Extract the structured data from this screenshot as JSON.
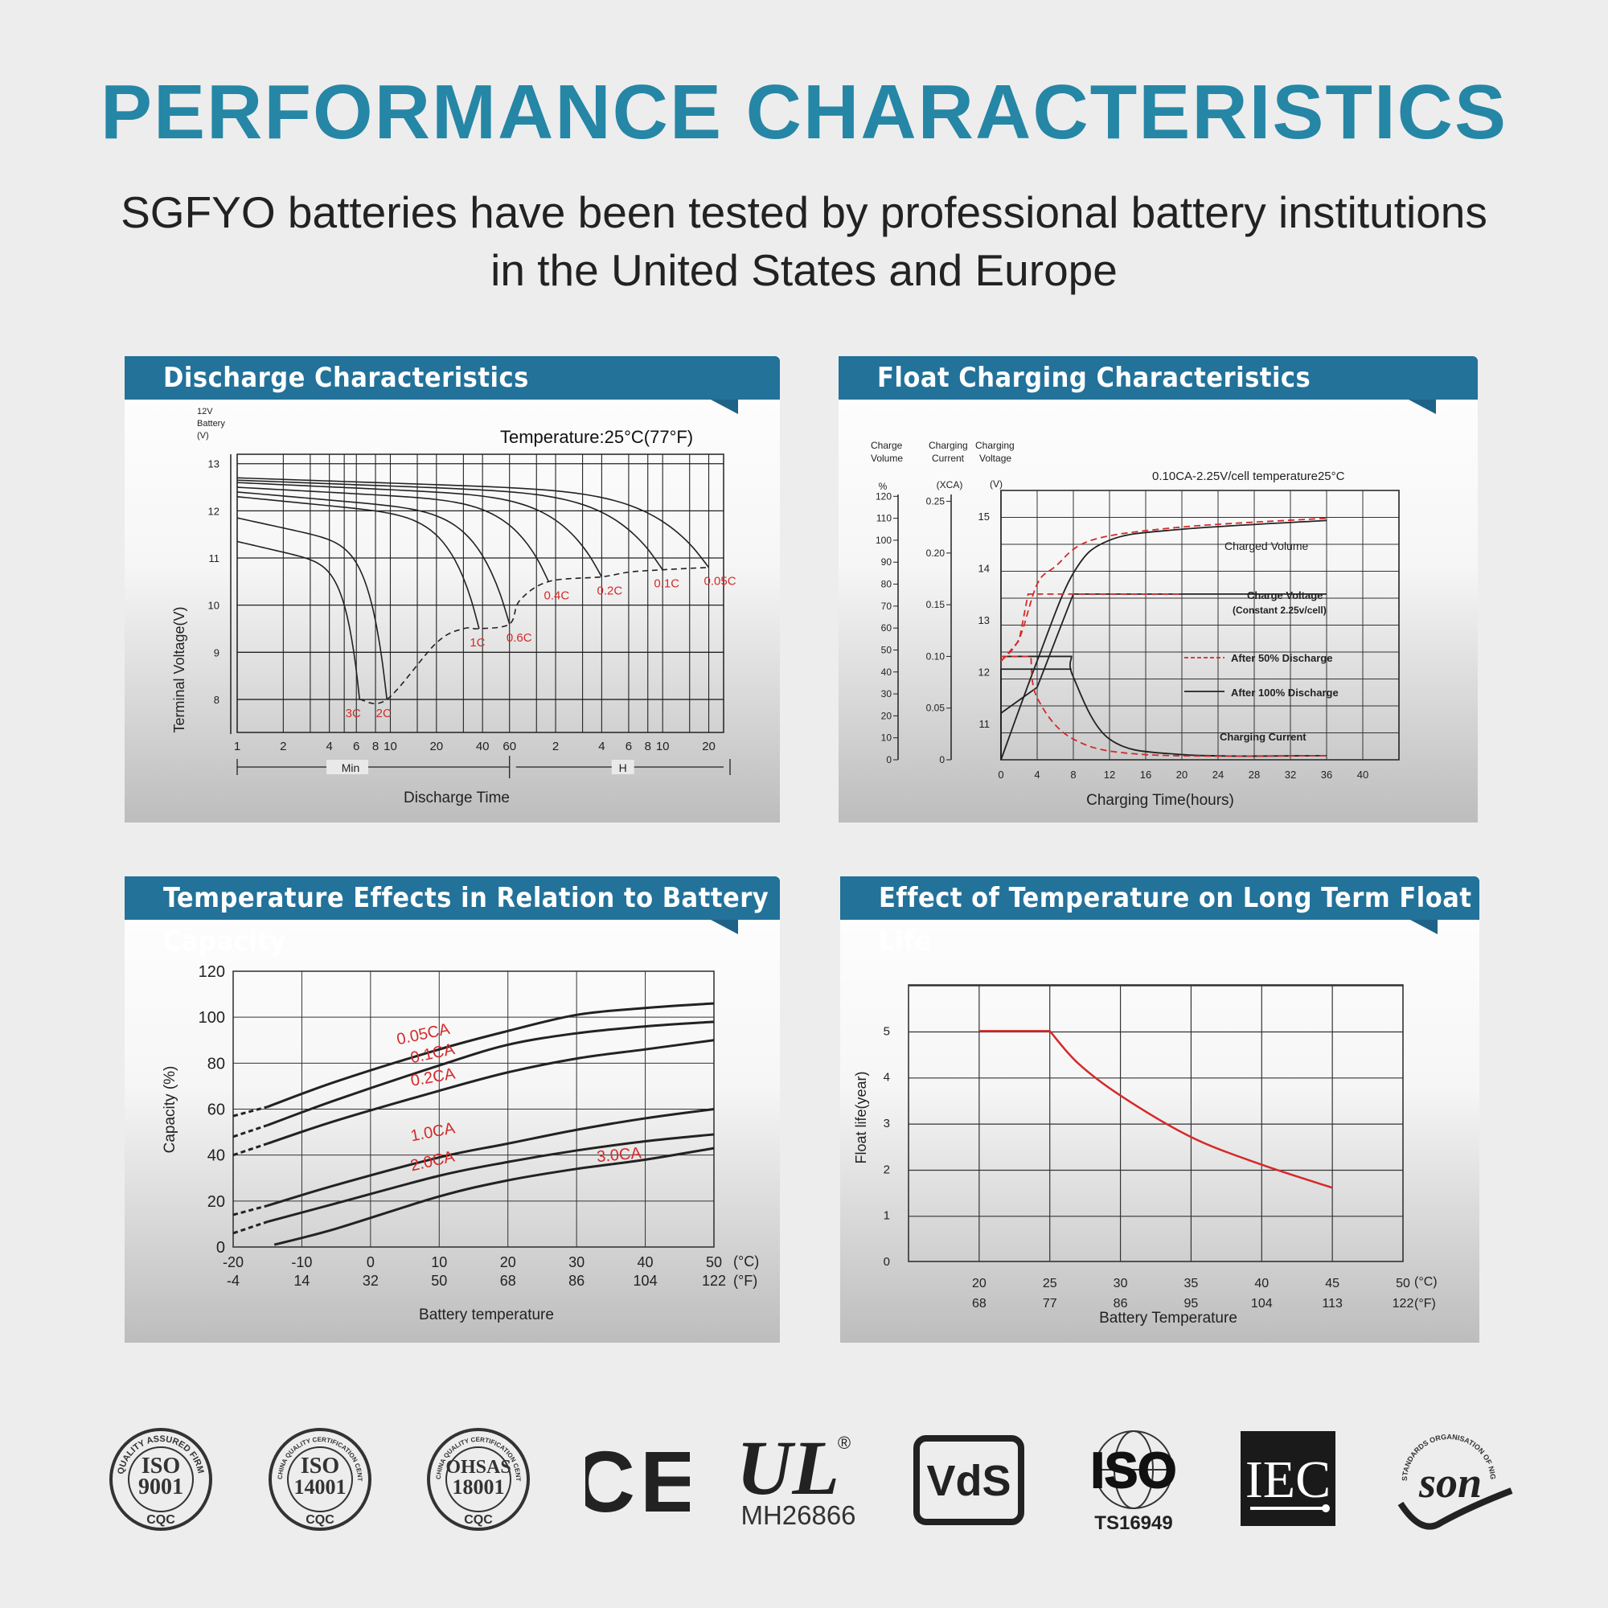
{
  "title": "PERFORMANCE CHARACTERISTICS",
  "subtitle_line1": "SGFYO batteries have been tested by professional battery institutions",
  "subtitle_line2": "in the United States and Europe",
  "panels": {
    "discharge": "Discharge Characteristics",
    "float_charging": "Float Charging Characteristics",
    "temp_capacity": "Temperature Effects in Relation to Battery Capacity",
    "float_life": "Effect of Temperature on Long Term Float Life"
  },
  "logos": {
    "iso9001": {
      "ring": "QUALITY ASSURED FIRM",
      "line1": "ISO",
      "line2": "9001",
      "bottom": "CQC"
    },
    "iso14001": {
      "ring": "CHINA QUALITY CERTIFICATION CENTRE",
      "line1": "ISO",
      "line2": "14001",
      "bottom": "CQC"
    },
    "ohsas": {
      "ring": "CHINA QUALITY CERTIFICATION CENTRE",
      "line1": "OHSAS",
      "line2": "18001",
      "bottom": "CQC"
    },
    "ce": "CE",
    "ul": {
      "mark": "UL",
      "code": "MH26866",
      "reg": "®"
    },
    "vds": "VdS",
    "iso_ts": {
      "mark": "ISO",
      "code": "TS16949"
    },
    "iec": "IEC",
    "son": {
      "ring": "STANDARDS ORGANISATION OF NIGERIA",
      "mark": "son"
    }
  },
  "chart_data": [
    {
      "type": "line",
      "title": "Discharge Characteristics",
      "annotation": "Temperature:25°C(77°F)",
      "ylabel": "Terminal Voltage(V)",
      "ylabel_top": [
        "12V",
        "Battery",
        "(V)"
      ],
      "xlabel": "Discharge Time",
      "y_ticks": [
        "13",
        "12",
        "11",
        "10",
        "9",
        "8"
      ],
      "ylim": [
        7.3,
        13.2
      ],
      "x_ticks_min": [
        "1",
        "2",
        "4",
        "6",
        "8",
        "10",
        "20",
        "40",
        "60"
      ],
      "x_ticks_h": [
        "2",
        "4",
        "6",
        "8",
        "10",
        "20"
      ],
      "x_unit_min": "Min",
      "x_unit_h": "H",
      "x_scale": "log",
      "series": [
        {
          "name": "3C",
          "end_time_min": 6.3,
          "end_voltage": 8.0
        },
        {
          "name": "2C",
          "end_time_min": 9.5,
          "end_voltage": 8.0
        },
        {
          "name": "1C",
          "end_time_min": 38,
          "end_voltage": 9.5
        },
        {
          "name": "0.6C",
          "end_time_min": 60,
          "end_voltage": 9.6
        },
        {
          "name": "0.4C",
          "end_time_min": 108,
          "end_voltage": 10.5
        },
        {
          "name": "0.2C",
          "end_time_min": 240,
          "end_voltage": 10.6
        },
        {
          "name": "0.1C",
          "end_time_min": 600,
          "end_voltage": 10.75
        },
        {
          "name": "0.05C",
          "end_time_min": 1200,
          "end_voltage": 10.8
        }
      ],
      "cutoff_line": "dashed"
    },
    {
      "type": "line",
      "title": "Float Charging Characteristics",
      "annotation": "0.10CA-2.25V/cell   temperature25°C",
      "axis_headers": [
        "Charge Volume",
        "%",
        "Charging Current",
        "(XCA)",
        "Charging Voltage",
        "(V)"
      ],
      "volume_ticks": [
        "120",
        "110",
        "100",
        "90",
        "80",
        "70",
        "60",
        "50",
        "40",
        "30",
        "20",
        "10",
        "0"
      ],
      "current_ticks": [
        "0.25",
        "0.20",
        "0.15",
        "0.10",
        "0.05",
        "0"
      ],
      "voltage_ticks": [
        "15",
        "14",
        "13",
        "12",
        "11"
      ],
      "x_ticks": [
        "0",
        "4",
        "8",
        "12",
        "16",
        "20",
        "24",
        "28",
        "32",
        "36",
        "40"
      ],
      "xlabel": "Charging Time(hours)",
      "labels": {
        "charged_volume": "Charged Volume",
        "charge_voltage": "Charge Voltage",
        "charge_voltage_note": "(Constant 2.25v/cell)",
        "after50": "After 50% Discharge",
        "after100": "After 100% Discharge",
        "charging_current": "Charging Current"
      },
      "series": [
        {
          "name": "Charged Volume (After 100% Discharge)",
          "x": [
            0,
            4,
            8,
            12,
            20,
            36
          ],
          "y_percent": [
            0,
            45,
            85,
            100,
            105,
            109
          ]
        },
        {
          "name": "Charged Volume (After 50% Discharge)",
          "x": [
            0,
            2,
            4,
            6,
            10,
            20,
            36
          ],
          "y_percent": [
            45,
            55,
            80,
            88,
            100,
            106,
            110
          ]
        },
        {
          "name": "Charge Voltage (After 100% Discharge)",
          "x": [
            0,
            4,
            8,
            20,
            36
          ],
          "y_volts": [
            11.2,
            11.7,
            13.5,
            13.5,
            13.5
          ]
        },
        {
          "name": "Charge Voltage (After 50% Discharge)",
          "x": [
            0,
            2,
            3,
            4,
            20
          ],
          "y_volts": [
            12.2,
            12.6,
            13.5,
            13.5,
            13.5
          ]
        },
        {
          "name": "Charging Current (After 100% Discharge)",
          "x": [
            0,
            7.8,
            8,
            12,
            20,
            36
          ],
          "y_xca": [
            0.1,
            0.1,
            0.08,
            0.02,
            0.005,
            0.004
          ]
        },
        {
          "name": "Charging Current (After 50% Discharge)",
          "x": [
            0,
            3.3,
            4,
            8,
            16,
            36
          ],
          "y_xca": [
            0.1,
            0.1,
            0.06,
            0.02,
            0.005,
            0.004
          ]
        }
      ]
    },
    {
      "type": "line",
      "title": "Temperature Effects in Relation to Battery Capacity",
      "ylabel": "Capacity  (%)",
      "xlabel": "Battery temperature",
      "x_ticks_c": [
        "-20",
        "-10",
        "0",
        "10",
        "20",
        "30",
        "40",
        "50"
      ],
      "x_ticks_f": [
        "-4",
        "14",
        "32",
        "50",
        "68",
        "86",
        "104",
        "122"
      ],
      "x_unit_c": "(°C)",
      "x_unit_f": "(°F)",
      "y_ticks": [
        "0",
        "20",
        "40",
        "60",
        "80",
        "100",
        "120"
      ],
      "xlim": [
        -20,
        50
      ],
      "ylim": [
        0,
        120
      ],
      "series": [
        {
          "name": "0.05CA",
          "x": [
            -20,
            -15,
            -5,
            10,
            20,
            30,
            40,
            50
          ],
          "y": [
            57,
            61,
            72,
            86,
            94,
            101,
            104,
            106
          ]
        },
        {
          "name": "0.1CA",
          "x": [
            -20,
            -15,
            -5,
            10,
            20,
            30,
            40,
            50
          ],
          "y": [
            48,
            53,
            64,
            79,
            88,
            93,
            96,
            98
          ]
        },
        {
          "name": "0.2CA",
          "x": [
            -20,
            -15,
            -5,
            10,
            20,
            30,
            40,
            50
          ],
          "y": [
            40,
            45,
            55,
            68,
            76,
            82,
            86,
            90
          ]
        },
        {
          "name": "1.0CA",
          "x": [
            -20,
            -15,
            -5,
            10,
            20,
            30,
            40,
            50
          ],
          "y": [
            14,
            18,
            27,
            39,
            45,
            51,
            56,
            60
          ]
        },
        {
          "name": "2.0CA",
          "x": [
            -20,
            -15,
            -5,
            10,
            20,
            30,
            40,
            50
          ],
          "y": [
            6,
            11,
            19,
            31,
            37,
            42,
            46,
            49
          ]
        },
        {
          "name": "3.0CA",
          "x": [
            -14,
            -5,
            10,
            20,
            30,
            40,
            50
          ],
          "y": [
            1,
            8,
            22,
            29,
            34,
            38,
            43
          ]
        }
      ]
    },
    {
      "type": "line",
      "title": "Effect of Temperature on Long Term Float Life",
      "ylabel": "Float life(year)",
      "xlabel": "Battery Temperature",
      "x_ticks_c": [
        "20",
        "25",
        "30",
        "35",
        "40",
        "45",
        "50"
      ],
      "x_ticks_f": [
        "68",
        "77",
        "86",
        "95",
        "104",
        "113",
        "122"
      ],
      "x_unit_c": "(°C)",
      "x_unit_f": "(°F)",
      "y_ticks": [
        "0",
        "1",
        "2",
        "3",
        "4",
        "5"
      ],
      "xlim": [
        15,
        50
      ],
      "ylim": [
        0,
        6
      ],
      "series": [
        {
          "name": "Float life",
          "x": [
            20,
            25,
            27,
            30,
            35,
            40,
            45
          ],
          "y": [
            5,
            5,
            4.3,
            3.6,
            2.7,
            2.1,
            1.6
          ],
          "color": "#d42a2a"
        }
      ]
    }
  ]
}
